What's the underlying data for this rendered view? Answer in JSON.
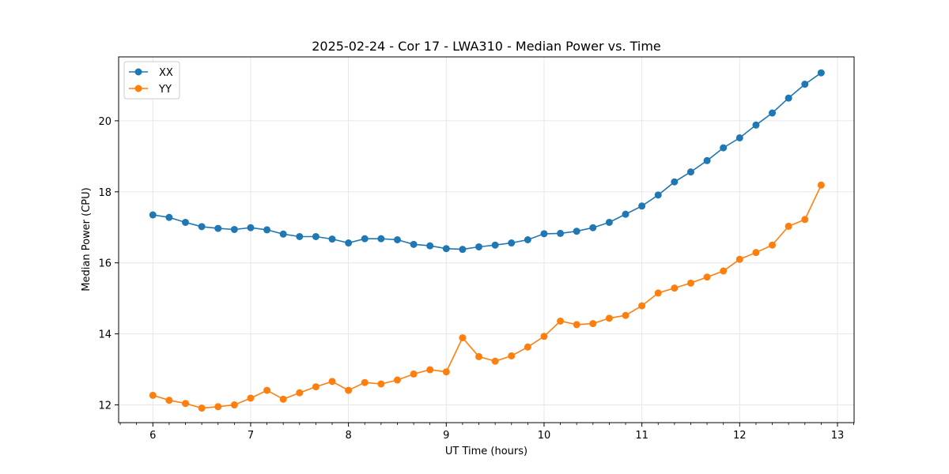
{
  "chart_data": {
    "type": "line",
    "title": "2025-02-24 - Cor 17 - LWA310 - Median Power vs. Time",
    "xlabel": "UT Time (hours)",
    "ylabel": "Median Power (CPU)",
    "xlim": [
      5.65,
      13.17
    ],
    "ylim": [
      11.5,
      21.8
    ],
    "xticks": [
      6,
      7,
      8,
      9,
      10,
      11,
      12,
      13
    ],
    "yticks": [
      12,
      14,
      16,
      18,
      20
    ],
    "grid": true,
    "legend_position": "top-left",
    "x": [
      6.0,
      6.1667,
      6.3333,
      6.5,
      6.6667,
      6.8333,
      7.0,
      7.1667,
      7.3333,
      7.5,
      7.6667,
      7.8333,
      8.0,
      8.1667,
      8.3333,
      8.5,
      8.6667,
      8.8333,
      9.0,
      9.1667,
      9.3333,
      9.5,
      9.6667,
      9.8333,
      10.0,
      10.1667,
      10.3333,
      10.5,
      10.6667,
      10.8333,
      11.0,
      11.1667,
      11.3333,
      11.5,
      11.6667,
      11.8333,
      12.0,
      12.1667,
      12.3333,
      12.5,
      12.6667,
      12.8333
    ],
    "series": [
      {
        "name": "XX",
        "color": "#1f77b4",
        "values": [
          17.35,
          17.28,
          17.14,
          17.02,
          16.97,
          16.94,
          16.99,
          16.93,
          16.81,
          16.74,
          16.74,
          16.67,
          16.56,
          16.68,
          16.68,
          16.65,
          16.52,
          16.48,
          16.4,
          16.38,
          16.45,
          16.5,
          16.56,
          16.65,
          16.82,
          16.83,
          16.89,
          16.99,
          17.14,
          17.37,
          17.6,
          17.91,
          18.28,
          18.56,
          18.88,
          19.24,
          19.52,
          19.88,
          20.22,
          20.64,
          21.03,
          21.35
        ]
      },
      {
        "name": "YY",
        "color": "#ff7f0e",
        "values": [
          12.27,
          12.13,
          12.04,
          11.91,
          11.95,
          12.0,
          12.19,
          12.41,
          12.16,
          12.34,
          12.51,
          12.66,
          12.41,
          12.63,
          12.59,
          12.7,
          12.87,
          12.99,
          12.93,
          13.89,
          13.36,
          13.23,
          13.38,
          13.63,
          13.93,
          14.36,
          14.26,
          14.29,
          14.44,
          14.52,
          14.79,
          15.15,
          15.29,
          15.43,
          15.6,
          15.77,
          16.1,
          16.29,
          16.5,
          17.03,
          17.22,
          18.19
        ]
      }
    ]
  }
}
